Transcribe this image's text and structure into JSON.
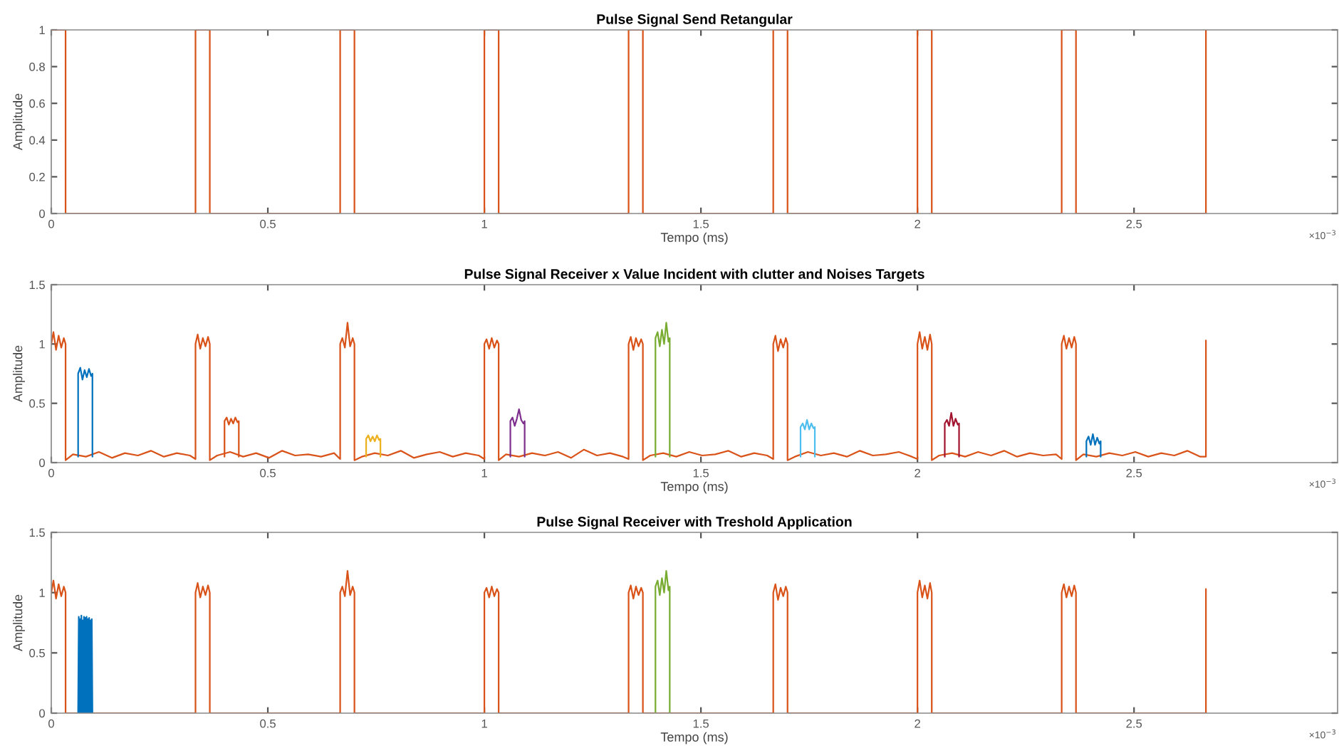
{
  "chart_data": [
    {
      "type": "line",
      "title": "Pulse Signal Send Retangular",
      "xlabel": "Tempo (ms)",
      "ylabel": "Amplitude",
      "xlim": [
        0,
        2.97
      ],
      "xticks": [
        0,
        0.5,
        1,
        1.5,
        2,
        2.5
      ],
      "ylim": [
        0,
        1
      ],
      "yticks": [
        0,
        0.2,
        0.4,
        0.6,
        0.8,
        1
      ],
      "grid": false,
      "annotations": [
        "×10$^{−3}$"
      ],
      "series": [
        {
          "color": "#d95319",
          "x": [
            0,
            0.033,
            0.033,
            0.333,
            0.333,
            0.366,
            0.366,
            0.667,
            0.667,
            0.7,
            0.7,
            1.0,
            1.0,
            1.033,
            1.033,
            1.333,
            1.333,
            1.366,
            1.366,
            1.667,
            1.667,
            1.7,
            1.7,
            2.0,
            2.0,
            2.033,
            2.033,
            2.333,
            2.333,
            2.366,
            2.366,
            2.666,
            2.666
          ],
          "values": [
            1,
            1,
            0,
            0,
            1,
            1,
            0,
            0,
            1,
            1,
            0,
            0,
            1,
            1,
            0,
            0,
            1,
            1,
            0,
            0,
            1,
            1,
            0,
            0,
            1,
            1,
            0,
            0,
            1,
            1,
            0,
            0,
            1
          ]
        }
      ]
    },
    {
      "type": "line",
      "title": "Pulse Signal Receiver x Value Incident with clutter and Noises Targets",
      "xlabel": "Tempo (ms)",
      "ylabel": "Amplitude",
      "xlim": [
        0,
        2.97
      ],
      "xticks": [
        0,
        0.5,
        1,
        1.5,
        2,
        2.5
      ],
      "ylim": [
        0,
        1.5
      ],
      "yticks": [
        0,
        0.5,
        1,
        1.5
      ],
      "grid": false,
      "annotations": [
        "×10$^{−3}$"
      ],
      "series": [
        {
          "color": "#d95319",
          "x": [
            0,
            0.005,
            0.011,
            0.017,
            0.023,
            0.029,
            0.033,
            0.033,
            0.05,
            0.08,
            0.11,
            0.14,
            0.17,
            0.2,
            0.23,
            0.26,
            0.29,
            0.32,
            0.333,
            0.333,
            0.338,
            0.344,
            0.35,
            0.356,
            0.362,
            0.366,
            0.366,
            0.383,
            0.413,
            0.443,
            0.473,
            0.503,
            0.533,
            0.563,
            0.593,
            0.623,
            0.653,
            0.667,
            0.667,
            0.672,
            0.678,
            0.684,
            0.69,
            0.696,
            0.7,
            0.7,
            0.717,
            0.747,
            0.777,
            0.807,
            0.837,
            0.867,
            0.897,
            0.927,
            0.957,
            0.987,
            1.0,
            1.0,
            1.005,
            1.011,
            1.017,
            1.023,
            1.029,
            1.033,
            1.033,
            1.05,
            1.08,
            1.11,
            1.14,
            1.17,
            1.2,
            1.23,
            1.26,
            1.29,
            1.32,
            1.333,
            1.333,
            1.338,
            1.344,
            1.35,
            1.356,
            1.362,
            1.366,
            1.366,
            1.383,
            1.413,
            1.443,
            1.473,
            1.503,
            1.533,
            1.563,
            1.593,
            1.623,
            1.653,
            1.667,
            1.667,
            1.672,
            1.678,
            1.684,
            1.69,
            1.696,
            1.7,
            1.7,
            1.717,
            1.747,
            1.777,
            1.807,
            1.837,
            1.867,
            1.897,
            1.927,
            1.957,
            1.987,
            2.0,
            2.0,
            2.005,
            2.011,
            2.017,
            2.023,
            2.029,
            2.033,
            2.033,
            2.05,
            2.08,
            2.11,
            2.14,
            2.17,
            2.2,
            2.23,
            2.26,
            2.29,
            2.32,
            2.333,
            2.333,
            2.338,
            2.344,
            2.35,
            2.356,
            2.362,
            2.366,
            2.366,
            2.383,
            2.413,
            2.443,
            2.473,
            2.503,
            2.533,
            2.563,
            2.593,
            2.623,
            2.653,
            2.666,
            2.666
          ],
          "values": [
            1.0,
            1.1,
            0.95,
            1.07,
            0.97,
            1.05,
            1.0,
            0.02,
            0.07,
            0.05,
            0.09,
            0.04,
            0.08,
            0.06,
            0.1,
            0.05,
            0.08,
            0.06,
            0.03,
            1.0,
            1.08,
            0.96,
            1.05,
            0.98,
            1.06,
            1.0,
            0.02,
            0.06,
            0.09,
            0.05,
            0.08,
            0.04,
            0.1,
            0.06,
            0.07,
            0.05,
            0.08,
            0.03,
            1.0,
            1.05,
            0.97,
            1.18,
            0.98,
            1.05,
            1.0,
            0.02,
            0.05,
            0.08,
            0.06,
            0.1,
            0.04,
            0.07,
            0.09,
            0.05,
            0.08,
            0.06,
            0.03,
            1.0,
            1.04,
            0.96,
            1.05,
            0.97,
            1.03,
            1.0,
            0.02,
            0.07,
            0.05,
            0.08,
            0.06,
            0.09,
            0.04,
            0.11,
            0.06,
            0.08,
            0.05,
            0.03,
            1.0,
            1.06,
            0.95,
            1.05,
            0.98,
            1.04,
            1.0,
            0.02,
            0.06,
            0.08,
            0.05,
            0.09,
            0.06,
            0.07,
            0.1,
            0.05,
            0.08,
            0.06,
            0.03,
            1.0,
            1.07,
            0.94,
            1.04,
            0.97,
            1.05,
            1.0,
            0.02,
            0.05,
            0.09,
            0.06,
            0.08,
            0.05,
            0.1,
            0.06,
            0.07,
            0.09,
            0.05,
            0.03,
            1.0,
            1.1,
            0.96,
            1.06,
            0.95,
            1.08,
            1.0,
            0.02,
            0.06,
            0.08,
            0.05,
            0.09,
            0.06,
            0.1,
            0.05,
            0.08,
            0.06,
            0.07,
            0.03,
            1.0,
            1.07,
            0.96,
            1.05,
            0.97,
            1.06,
            1.0,
            0.02,
            0.07,
            0.05,
            0.08,
            0.06,
            0.09,
            0.05,
            0.08,
            0.06,
            0.1,
            0.05,
            0.05,
            1.03
          ]
        },
        {
          "color": "#0072bd",
          "x": [
            0.062,
            0.062,
            0.067,
            0.072,
            0.077,
            0.082,
            0.087,
            0.092,
            0.095,
            0.095
          ],
          "values": [
            0.05,
            0.75,
            0.8,
            0.7,
            0.78,
            0.72,
            0.79,
            0.73,
            0.75,
            0.05
          ]
        },
        {
          "color": "#d95319",
          "x": [
            0.4,
            0.4,
            0.405,
            0.41,
            0.415,
            0.42,
            0.425,
            0.43,
            0.433,
            0.433
          ],
          "values": [
            0.05,
            0.35,
            0.38,
            0.32,
            0.37,
            0.33,
            0.38,
            0.34,
            0.35,
            0.05
          ]
        },
        {
          "color": "#edb120",
          "x": [
            0.727,
            0.727,
            0.732,
            0.737,
            0.742,
            0.747,
            0.752,
            0.757,
            0.76,
            0.76
          ],
          "values": [
            0.05,
            0.2,
            0.23,
            0.18,
            0.22,
            0.18,
            0.23,
            0.19,
            0.2,
            0.05
          ]
        },
        {
          "color": "#7e2f8e",
          "x": [
            1.06,
            1.06,
            1.065,
            1.07,
            1.075,
            1.08,
            1.085,
            1.09,
            1.093,
            1.093
          ],
          "values": [
            0.05,
            0.35,
            0.38,
            0.31,
            0.37,
            0.45,
            0.36,
            0.33,
            0.35,
            0.05
          ]
        },
        {
          "color": "#77ac30",
          "x": [
            1.395,
            1.395,
            1.4,
            1.405,
            1.41,
            1.415,
            1.42,
            1.425,
            1.428,
            1.428
          ],
          "values": [
            0.05,
            1.05,
            1.1,
            0.98,
            1.12,
            1.0,
            1.18,
            1.02,
            1.05,
            0.05
          ]
        },
        {
          "color": "#4dbeee",
          "x": [
            1.73,
            1.73,
            1.735,
            1.74,
            1.745,
            1.75,
            1.755,
            1.76,
            1.763,
            1.763
          ],
          "values": [
            0.05,
            0.3,
            0.33,
            0.28,
            0.36,
            0.28,
            0.33,
            0.29,
            0.3,
            0.05
          ]
        },
        {
          "color": "#a2142f",
          "x": [
            2.063,
            2.063,
            2.068,
            2.073,
            2.078,
            2.083,
            2.088,
            2.093,
            2.096,
            2.096
          ],
          "values": [
            0.05,
            0.33,
            0.36,
            0.31,
            0.42,
            0.31,
            0.37,
            0.32,
            0.33,
            0.05
          ]
        },
        {
          "color": "#0072bd",
          "x": [
            2.39,
            2.39,
            2.395,
            2.4,
            2.405,
            2.41,
            2.415,
            2.42,
            2.423,
            2.423
          ],
          "values": [
            0.05,
            0.18,
            0.22,
            0.15,
            0.24,
            0.15,
            0.21,
            0.16,
            0.18,
            0.05
          ]
        }
      ]
    },
    {
      "type": "line",
      "title": "Pulse Signal Receiver with Treshold Application",
      "xlabel": "Tempo (ms)",
      "ylabel": "Amplitude",
      "xlim": [
        0,
        2.97
      ],
      "xticks": [
        0,
        0.5,
        1,
        1.5,
        2,
        2.5
      ],
      "ylim": [
        0,
        1.5
      ],
      "yticks": [
        0,
        0.5,
        1,
        1.5
      ],
      "grid": false,
      "annotations": [
        "×10$^{−3}$"
      ],
      "series": [
        {
          "color": "#d95319",
          "x": [
            0,
            0.005,
            0.011,
            0.017,
            0.023,
            0.029,
            0.033,
            0.033,
            0.333,
            0.333,
            0.338,
            0.344,
            0.35,
            0.356,
            0.362,
            0.366,
            0.366,
            0.667,
            0.667,
            0.672,
            0.678,
            0.684,
            0.69,
            0.696,
            0.7,
            0.7,
            1.0,
            1.0,
            1.005,
            1.011,
            1.017,
            1.023,
            1.029,
            1.033,
            1.033,
            1.333,
            1.333,
            1.338,
            1.344,
            1.35,
            1.356,
            1.362,
            1.366,
            1.366,
            1.667,
            1.667,
            1.672,
            1.678,
            1.684,
            1.69,
            1.696,
            1.7,
            1.7,
            2.0,
            2.0,
            2.005,
            2.011,
            2.017,
            2.023,
            2.029,
            2.033,
            2.033,
            2.333,
            2.333,
            2.338,
            2.344,
            2.35,
            2.356,
            2.362,
            2.366,
            2.366,
            2.666,
            2.666
          ],
          "values": [
            1.0,
            1.1,
            0.95,
            1.07,
            0.97,
            1.05,
            1.0,
            0,
            0,
            1.0,
            1.08,
            0.96,
            1.05,
            0.98,
            1.06,
            1.0,
            0,
            0,
            1.0,
            1.05,
            0.97,
            1.18,
            0.98,
            1.05,
            1.0,
            0,
            0,
            1.0,
            1.04,
            0.96,
            1.05,
            0.97,
            1.03,
            1.0,
            0,
            0,
            1.0,
            1.06,
            0.95,
            1.05,
            0.98,
            1.04,
            1.0,
            0,
            0,
            1.0,
            1.07,
            0.94,
            1.04,
            0.97,
            1.05,
            1.0,
            0,
            0,
            1.0,
            1.1,
            0.96,
            1.06,
            0.95,
            1.08,
            1.0,
            0,
            0,
            1.0,
            1.07,
            0.96,
            1.05,
            0.97,
            1.06,
            1.0,
            0,
            0,
            1.03
          ]
        },
        {
          "color": "#0072bd",
          "x": [
            0.062,
            0.0635,
            0.065,
            0.0665,
            0.068,
            0.0695,
            0.071,
            0.0725,
            0.074,
            0.0755,
            0.077,
            0.0785,
            0.08,
            0.0815,
            0.083,
            0.0845,
            0.086,
            0.0875,
            0.089,
            0.0905,
            0.092,
            0.0935,
            0.095
          ],
          "values": [
            0,
            0.8,
            0,
            0.78,
            0,
            0.81,
            0,
            0.77,
            0,
            0.8,
            0,
            0.79,
            0,
            0.8,
            0,
            0.78,
            0,
            0.79,
            0,
            0.77,
            0,
            0.78,
            0
          ]
        },
        {
          "color": "#77ac30",
          "x": [
            1.395,
            1.395,
            1.4,
            1.405,
            1.41,
            1.415,
            1.42,
            1.425,
            1.428,
            1.428
          ],
          "values": [
            0,
            1.05,
            1.1,
            0.98,
            1.12,
            1.0,
            1.18,
            1.02,
            1.05,
            0
          ]
        }
      ]
    }
  ]
}
